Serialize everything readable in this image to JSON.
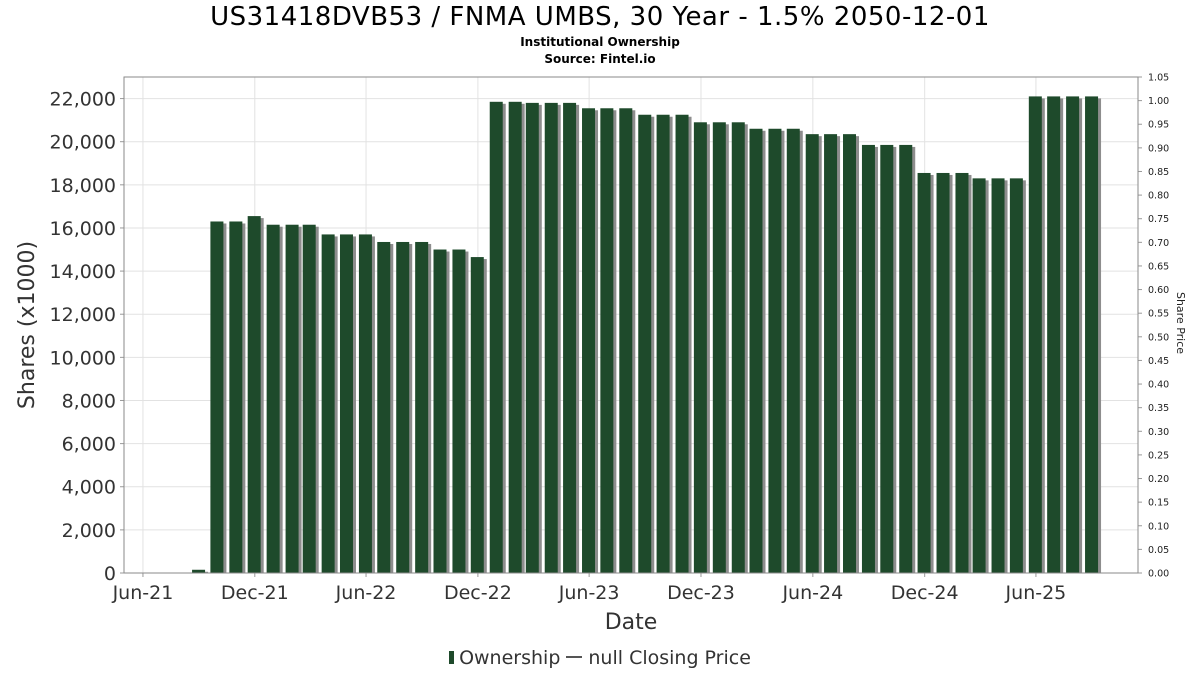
{
  "chart_data": {
    "type": "bar",
    "title": "US31418DVB53 / FNMA UMBS, 30 Year - 1.5% 2050-12-01",
    "subtitle": "Institutional Ownership",
    "source": "Source: Fintel.io",
    "xlabel": "Date",
    "ylabel": "Shares (x1000)",
    "y2label": "Share Price",
    "ylim": [
      0,
      23000
    ],
    "y2lim": [
      0,
      1.05
    ],
    "yticks": [
      0,
      2000,
      4000,
      6000,
      8000,
      10000,
      12000,
      14000,
      16000,
      18000,
      20000,
      22000
    ],
    "ytick_labels": [
      "0",
      "2,000",
      "4,000",
      "6,000",
      "8,000",
      "10,000",
      "12,000",
      "14,000",
      "16,000",
      "18,000",
      "20,000",
      "22,000"
    ],
    "y2tick_labels": [
      "0.00",
      "0.05",
      "0.10",
      "0.15",
      "0.20",
      "0.25",
      "0.30",
      "0.35",
      "0.40",
      "0.45",
      "0.50",
      "0.55",
      "0.60",
      "0.65",
      "0.70",
      "0.75",
      "0.80",
      "0.85",
      "0.90",
      "0.95",
      "1.00",
      "1.05"
    ],
    "xticks": [
      {
        "date": "2021-06-01",
        "label": "Jun-21"
      },
      {
        "date": "2021-12-01",
        "label": "Dec-21"
      },
      {
        "date": "2022-06-01",
        "label": "Jun-22"
      },
      {
        "date": "2022-12-01",
        "label": "Dec-22"
      },
      {
        "date": "2023-06-01",
        "label": "Jun-23"
      },
      {
        "date": "2023-12-01",
        "label": "Dec-23"
      },
      {
        "date": "2024-06-01",
        "label": "Jun-24"
      },
      {
        "date": "2024-12-01",
        "label": "Dec-24"
      },
      {
        "date": "2025-06-01",
        "label": "Jun-25"
      }
    ],
    "xlim": [
      "2021-05-01",
      "2025-11-15"
    ],
    "grid": true,
    "legend_position": "bottom",
    "series": [
      {
        "name": "Ownership",
        "color": "#1e4a2b",
        "x": [
          "2021-06-30",
          "2021-07-31",
          "2021-08-31",
          "2021-09-30",
          "2021-10-31",
          "2021-11-30",
          "2021-12-31",
          "2022-01-31",
          "2022-02-28",
          "2022-03-31",
          "2022-04-30",
          "2022-05-31",
          "2022-06-30",
          "2022-07-31",
          "2022-08-31",
          "2022-09-30",
          "2022-10-31",
          "2022-11-30",
          "2022-12-31",
          "2023-01-31",
          "2023-02-28",
          "2023-03-31",
          "2023-04-30",
          "2023-05-31",
          "2023-06-30",
          "2023-07-31",
          "2023-08-31",
          "2023-09-30",
          "2023-10-31",
          "2023-11-30",
          "2023-12-31",
          "2024-01-31",
          "2024-02-29",
          "2024-03-31",
          "2024-04-30",
          "2024-05-31",
          "2024-06-30",
          "2024-07-31",
          "2024-08-31",
          "2024-09-30",
          "2024-10-31",
          "2024-11-30",
          "2024-12-31",
          "2025-01-31",
          "2025-02-28",
          "2025-03-31",
          "2025-04-30",
          "2025-05-31",
          "2025-06-30",
          "2025-07-31",
          "2025-08-31"
        ],
        "values": [
          0,
          0,
          150,
          16300,
          16300,
          16550,
          16150,
          16150,
          16150,
          15700,
          15700,
          15700,
          15350,
          15350,
          15350,
          15000,
          15000,
          14650,
          21850,
          21850,
          21800,
          21800,
          21800,
          21550,
          21550,
          21550,
          21250,
          21250,
          21250,
          20900,
          20900,
          20900,
          20600,
          20600,
          20600,
          20350,
          20350,
          20350,
          19850,
          19850,
          19850,
          18550,
          18550,
          18550,
          18300,
          18300,
          18300,
          22100,
          22100,
          22100,
          22100
        ]
      },
      {
        "name": "null Closing Price",
        "color": "#555555",
        "values": []
      }
    ]
  }
}
